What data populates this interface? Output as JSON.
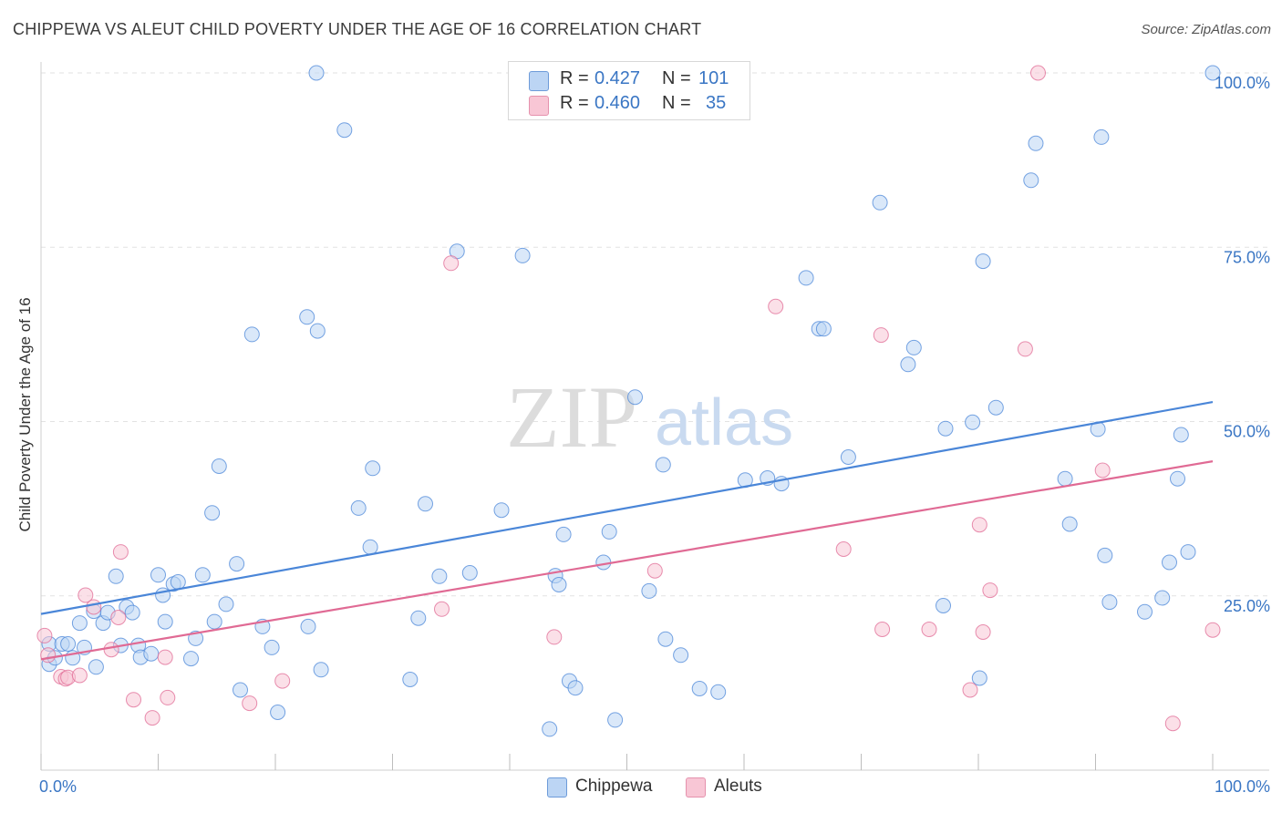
{
  "title": "CHIPPEWA VS ALEUT CHILD POVERTY UNDER THE AGE OF 16 CORRELATION CHART",
  "source": "Source: ZipAtlas.com",
  "watermark": {
    "zip": "ZIP",
    "atlas": "atlas"
  },
  "legend_top": {
    "rows": [
      {
        "r_label": "R =",
        "r_value": "0.427",
        "n_label": "N =",
        "n_value": "101",
        "color": "#a9c8f0"
      },
      {
        "r_label": "R =",
        "r_value": "0.460",
        "n_label": "N =",
        "n_value": "35",
        "color": "#f5b8cb"
      }
    ]
  },
  "bottom_legend": [
    {
      "label": "Chippewa",
      "color": "#a9c8f0"
    },
    {
      "label": "Aleuts",
      "color": "#f5b8cb"
    }
  ],
  "chart_data": {
    "type": "scatter",
    "title": "CHIPPEWA VS ALEUT CHILD POVERTY UNDER THE AGE OF 16 CORRELATION CHART",
    "xlabel": "",
    "ylabel": "Child Poverty Under the Age of 16",
    "xlim": [
      0,
      100
    ],
    "ylim": [
      0,
      100
    ],
    "x_tick_labels": [
      "0.0%",
      "100.0%"
    ],
    "y_tick_labels": [
      "25.0%",
      "50.0%",
      "75.0%",
      "100.0%"
    ],
    "y_ticks": [
      25,
      50,
      75,
      100
    ],
    "grid": true,
    "legend_placement": "top-center",
    "series": [
      {
        "name": "Chippewa",
        "color": "#4a86d8",
        "fill": "#bcd5f4",
        "trend": {
          "x": [
            0,
            100
          ],
          "y": [
            22.4,
            52.8
          ]
        },
        "points": [
          [
            0.7,
            18.1
          ],
          [
            0.7,
            15.2
          ],
          [
            1.2,
            16.1
          ],
          [
            1.8,
            18.1
          ],
          [
            2.3,
            18.1
          ],
          [
            2.7,
            16.1
          ],
          [
            3.3,
            21.1
          ],
          [
            3.7,
            17.6
          ],
          [
            4.7,
            14.8
          ],
          [
            4.5,
            22.8
          ],
          [
            5.3,
            21.1
          ],
          [
            5.7,
            22.6
          ],
          [
            6.4,
            27.8
          ],
          [
            6.8,
            17.9
          ],
          [
            7.3,
            23.4
          ],
          [
            7.8,
            22.6
          ],
          [
            8.3,
            17.9
          ],
          [
            8.5,
            16.2
          ],
          [
            9.4,
            16.7
          ],
          [
            10.0,
            28.0
          ],
          [
            10.4,
            25.1
          ],
          [
            10.6,
            21.3
          ],
          [
            11.3,
            26.7
          ],
          [
            11.7,
            27.0
          ],
          [
            12.8,
            16.0
          ],
          [
            13.2,
            18.9
          ],
          [
            13.8,
            28.0
          ],
          [
            14.6,
            36.9
          ],
          [
            14.8,
            21.3
          ],
          [
            15.2,
            43.6
          ],
          [
            15.8,
            23.8
          ],
          [
            16.7,
            29.6
          ],
          [
            17.0,
            11.5
          ],
          [
            18.0,
            62.5
          ],
          [
            18.9,
            20.6
          ],
          [
            19.7,
            17.6
          ],
          [
            20.2,
            8.3
          ],
          [
            22.7,
            65.0
          ],
          [
            22.8,
            20.6
          ],
          [
            23.5,
            100.0
          ],
          [
            23.6,
            63.0
          ],
          [
            23.9,
            14.4
          ],
          [
            25.9,
            91.8
          ],
          [
            27.1,
            37.6
          ],
          [
            28.1,
            32.0
          ],
          [
            28.3,
            43.3
          ],
          [
            31.5,
            13.0
          ],
          [
            32.2,
            21.8
          ],
          [
            32.8,
            38.2
          ],
          [
            34.0,
            27.8
          ],
          [
            35.5,
            74.4
          ],
          [
            36.6,
            28.3
          ],
          [
            39.3,
            37.3
          ],
          [
            41.1,
            73.8
          ],
          [
            43.4,
            5.9
          ],
          [
            43.9,
            27.9
          ],
          [
            44.2,
            26.6
          ],
          [
            44.6,
            33.8
          ],
          [
            45.1,
            12.8
          ],
          [
            45.6,
            11.8
          ],
          [
            48.0,
            29.8
          ],
          [
            48.5,
            34.2
          ],
          [
            49.0,
            7.2
          ],
          [
            50.7,
            53.5
          ],
          [
            51.9,
            25.7
          ],
          [
            53.1,
            43.8
          ],
          [
            53.3,
            18.8
          ],
          [
            54.6,
            16.5
          ],
          [
            56.2,
            11.7
          ],
          [
            57.8,
            11.2
          ],
          [
            60.1,
            41.6
          ],
          [
            62.0,
            41.9
          ],
          [
            63.2,
            41.1
          ],
          [
            65.3,
            70.6
          ],
          [
            66.4,
            63.3
          ],
          [
            66.8,
            63.3
          ],
          [
            68.9,
            44.9
          ],
          [
            71.6,
            81.4
          ],
          [
            74.0,
            58.2
          ],
          [
            74.5,
            60.6
          ],
          [
            77.0,
            23.6
          ],
          [
            77.2,
            49.0
          ],
          [
            79.5,
            49.9
          ],
          [
            80.1,
            13.2
          ],
          [
            80.4,
            73.0
          ],
          [
            81.5,
            52.0
          ],
          [
            84.5,
            84.6
          ],
          [
            84.9,
            89.9
          ],
          [
            87.4,
            41.8
          ],
          [
            87.8,
            35.3
          ],
          [
            90.2,
            48.9
          ],
          [
            90.5,
            90.8
          ],
          [
            90.8,
            30.8
          ],
          [
            91.2,
            24.1
          ],
          [
            94.2,
            22.7
          ],
          [
            95.7,
            24.7
          ],
          [
            96.3,
            29.8
          ],
          [
            97.0,
            41.8
          ],
          [
            97.3,
            48.1
          ],
          [
            97.9,
            31.3
          ],
          [
            100.0,
            100.0
          ]
        ]
      },
      {
        "name": "Aleuts",
        "color": "#e06a94",
        "fill": "#f8c6d5",
        "trend": {
          "x": [
            0,
            100
          ],
          "y": [
            15.9,
            44.3
          ]
        },
        "points": [
          [
            0.3,
            19.3
          ],
          [
            0.6,
            16.5
          ],
          [
            1.7,
            13.4
          ],
          [
            2.1,
            13.1
          ],
          [
            2.3,
            13.3
          ],
          [
            3.3,
            13.6
          ],
          [
            3.8,
            25.1
          ],
          [
            4.5,
            23.4
          ],
          [
            6.0,
            17.3
          ],
          [
            6.6,
            21.9
          ],
          [
            6.8,
            31.3
          ],
          [
            7.9,
            10.1
          ],
          [
            9.5,
            7.5
          ],
          [
            10.6,
            16.2
          ],
          [
            10.8,
            10.4
          ],
          [
            17.8,
            9.6
          ],
          [
            20.6,
            12.8
          ],
          [
            35.0,
            72.7
          ],
          [
            34.2,
            23.1
          ],
          [
            43.8,
            19.1
          ],
          [
            52.4,
            28.6
          ],
          [
            62.7,
            66.5
          ],
          [
            68.5,
            31.7
          ],
          [
            71.7,
            62.4
          ],
          [
            71.8,
            20.2
          ],
          [
            75.8,
            20.2
          ],
          [
            79.3,
            11.5
          ],
          [
            80.1,
            35.2
          ],
          [
            80.4,
            19.8
          ],
          [
            81.0,
            25.8
          ],
          [
            84.0,
            60.4
          ],
          [
            85.1,
            100.0
          ],
          [
            90.6,
            43.0
          ],
          [
            96.6,
            6.7
          ],
          [
            100.0,
            20.1
          ]
        ]
      }
    ]
  }
}
